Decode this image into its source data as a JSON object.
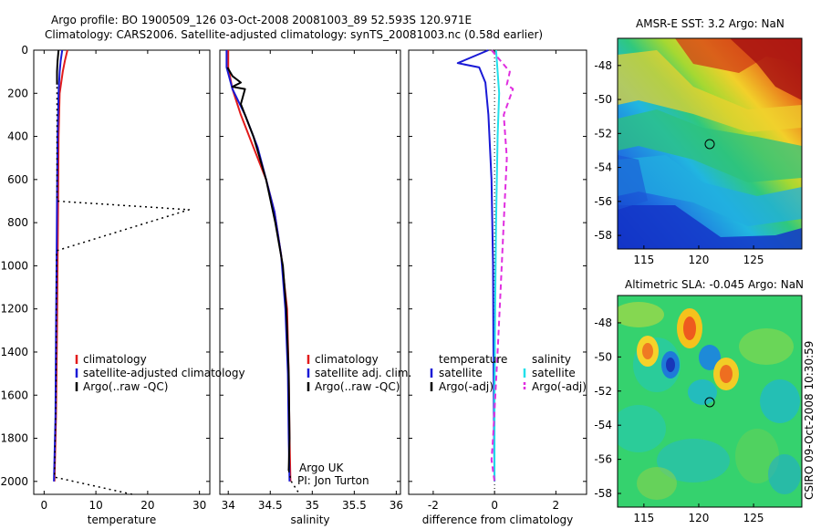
{
  "header": {
    "line1": "Argo profile: BO 1900509_126 03-Oct-2008 20081003_89 52.593S 120.971E",
    "line2": "Climatology: CARS2006. Satellite-adjusted climatology: synTS_20081003.nc (0.58d earlier)"
  },
  "credits": {
    "argo": "Argo UK",
    "pi": "PI: Jon Turton",
    "stamp": "CSIRO 09-Oct-2008 10:30:59"
  },
  "colors": {
    "climatology": "#e21b1b",
    "satellite": "#1a1ad6",
    "argo": "#000000",
    "sat_salinity": "#22e0ea",
    "argo_salinity_diff": "#e02ee0"
  },
  "chart_data": [
    {
      "type": "line",
      "panel": "temperature",
      "xlabel": "temperature",
      "ylabel": "",
      "xlim": [
        -2,
        32
      ],
      "ylim": [
        2060,
        0
      ],
      "xticks": [
        0,
        10,
        20,
        30
      ],
      "yticks": [
        0,
        200,
        400,
        600,
        800,
        1000,
        1200,
        1400,
        1600,
        1800,
        2000
      ],
      "legend": [
        "climatology",
        "satellite-adjusted climatology",
        "Argo(..raw -QC)"
      ],
      "legend_position": "lower-right",
      "series": [
        {
          "name": "climatology",
          "points": [
            [
              4.5,
              0
            ],
            [
              4.0,
              50
            ],
            [
              3.6,
              100
            ],
            [
              3.0,
              200
            ],
            [
              2.8,
              400
            ],
            [
              2.7,
              700
            ],
            [
              2.6,
              1000
            ],
            [
              2.5,
              1300
            ],
            [
              2.3,
              1700
            ],
            [
              2.0,
              2000
            ]
          ]
        },
        {
          "name": "satellite-adjusted climatology",
          "points": [
            [
              3.5,
              0
            ],
            [
              3.2,
              50
            ],
            [
              3.0,
              100
            ],
            [
              2.8,
              200
            ],
            [
              2.6,
              400
            ],
            [
              2.5,
              700
            ],
            [
              2.4,
              1000
            ],
            [
              2.3,
              1300
            ],
            [
              2.2,
              1700
            ],
            [
              1.9,
              2000
            ]
          ]
        },
        {
          "name": "Argo(..raw -QC)",
          "points": [
            [
              2.8,
              0
            ],
            [
              2.6,
              50
            ],
            [
              2.5,
              100
            ],
            [
              2.5,
              160
            ]
          ]
        },
        {
          "name": "Argo raw",
          "dotted": true,
          "points": [
            [
              2.5,
              170
            ],
            [
              2.5,
              700
            ],
            [
              28,
              740
            ],
            [
              2.4,
              930
            ],
            [
              2.3,
              1600
            ],
            [
              2.0,
              1980
            ],
            [
              17,
              2060
            ]
          ]
        }
      ]
    },
    {
      "type": "line",
      "panel": "salinity",
      "xlabel": "salinity",
      "ylabel": "",
      "xlim": [
        33.9,
        36.05
      ],
      "ylim": [
        2060,
        0
      ],
      "xticks": [
        34,
        34.5,
        35,
        35.5,
        36
      ],
      "yticks": [
        0,
        200,
        400,
        600,
        800,
        1000,
        1200,
        1400,
        1600,
        1800,
        2000
      ],
      "legend": [
        "climatology",
        "satellite adj. clim.",
        "Argo(..raw -QC)"
      ],
      "legend_position": "lower-right",
      "series": [
        {
          "name": "climatology",
          "points": [
            [
              34.0,
              0
            ],
            [
              34.0,
              80
            ],
            [
              34.05,
              180
            ],
            [
              34.15,
              300
            ],
            [
              34.3,
              450
            ],
            [
              34.45,
              600
            ],
            [
              34.55,
              750
            ],
            [
              34.63,
              950
            ],
            [
              34.7,
              1200
            ],
            [
              34.72,
              1500
            ],
            [
              34.73,
              1800
            ],
            [
              34.74,
              2000
            ]
          ]
        },
        {
          "name": "satellite adj. clim.",
          "points": [
            [
              33.98,
              0
            ],
            [
              33.98,
              80
            ],
            [
              34.05,
              180
            ],
            [
              34.2,
              300
            ],
            [
              34.35,
              450
            ],
            [
              34.45,
              600
            ],
            [
              34.55,
              750
            ],
            [
              34.63,
              950
            ],
            [
              34.68,
              1200
            ],
            [
              34.71,
              1500
            ],
            [
              34.72,
              1800
            ],
            [
              34.73,
              2000
            ]
          ]
        },
        {
          "name": "Argo(..raw -QC)",
          "points": [
            [
              33.99,
              80
            ],
            [
              34.05,
              120
            ],
            [
              34.15,
              150
            ],
            [
              34.05,
              170
            ],
            [
              34.2,
              180
            ],
            [
              34.15,
              250
            ],
            [
              34.3,
              400
            ],
            [
              34.45,
              600
            ],
            [
              34.56,
              800
            ],
            [
              34.65,
              1000
            ],
            [
              34.69,
              1200
            ],
            [
              34.72,
              1500
            ],
            [
              34.73,
              1800
            ],
            [
              34.72,
              1950
            ]
          ]
        },
        {
          "name": "Argo raw",
          "dotted": true,
          "points": [
            [
              34.72,
              1950
            ],
            [
              34.75,
              2000
            ],
            [
              34.85,
              2060
            ]
          ]
        }
      ]
    },
    {
      "type": "line",
      "panel": "difference",
      "xlabel": "difference from climatology",
      "ylabel": "",
      "xlim": [
        -2.8,
        3.0
      ],
      "ylim": [
        2060,
        0
      ],
      "xticks": [
        -2,
        0,
        2
      ],
      "yticks": [
        0,
        200,
        400,
        600,
        800,
        1000,
        1200,
        1400,
        1600,
        1800,
        2000
      ],
      "legend": [
        "temperature",
        "satellite",
        "Argo(-adj)",
        "salinity",
        "satellite",
        "Argo(-adj)"
      ],
      "legend_position": "lower",
      "series": [
        {
          "name": "temperature satellite",
          "points": [
            [
              -0.2,
              0
            ],
            [
              -1.2,
              60
            ],
            [
              -0.5,
              80
            ],
            [
              -0.3,
              150
            ],
            [
              -0.2,
              300
            ],
            [
              -0.1,
              600
            ],
            [
              -0.05,
              1000
            ],
            [
              -0.03,
              1500
            ],
            [
              0,
              2000
            ]
          ]
        },
        {
          "name": "salinity satellite",
          "points": [
            [
              0.05,
              0
            ],
            [
              0.1,
              100
            ],
            [
              0.15,
              200
            ],
            [
              0.1,
              400
            ],
            [
              0.05,
              800
            ],
            [
              0.02,
              1200
            ],
            [
              0,
              1600
            ],
            [
              0,
              2000
            ]
          ]
        },
        {
          "name": "salinity Argo(-adj)",
          "dashed": true,
          "points": [
            [
              -0.1,
              0
            ],
            [
              0.5,
              100
            ],
            [
              0.4,
              160
            ],
            [
              0.6,
              180
            ],
            [
              0.3,
              300
            ],
            [
              0.4,
              500
            ],
            [
              0.3,
              800
            ],
            [
              0.2,
              1100
            ],
            [
              0.1,
              1400
            ],
            [
              -0.05,
              1800
            ],
            [
              -0.1,
              1900
            ],
            [
              0,
              2000
            ]
          ]
        }
      ]
    }
  ],
  "maps": [
    {
      "title": "AMSR-E SST: 3.2 Argo: NaN",
      "xticks": [
        "115",
        "120",
        "125"
      ],
      "yticks": [
        "-48",
        "-50",
        "-52",
        "-54",
        "-56",
        "-58"
      ],
      "marker": [
        120.971,
        -52.593
      ],
      "extent": [
        112.6,
        129.4,
        -58.8,
        -46.4
      ]
    },
    {
      "title": "Altimetric SLA: -0.045 Argo: NaN",
      "xticks": [
        "115",
        "120",
        "125"
      ],
      "yticks": [
        "-48",
        "-50",
        "-52",
        "-54",
        "-56",
        "-58"
      ],
      "marker": [
        120.971,
        -52.593
      ],
      "extent": [
        112.6,
        129.4,
        -58.8,
        -46.4
      ]
    }
  ]
}
